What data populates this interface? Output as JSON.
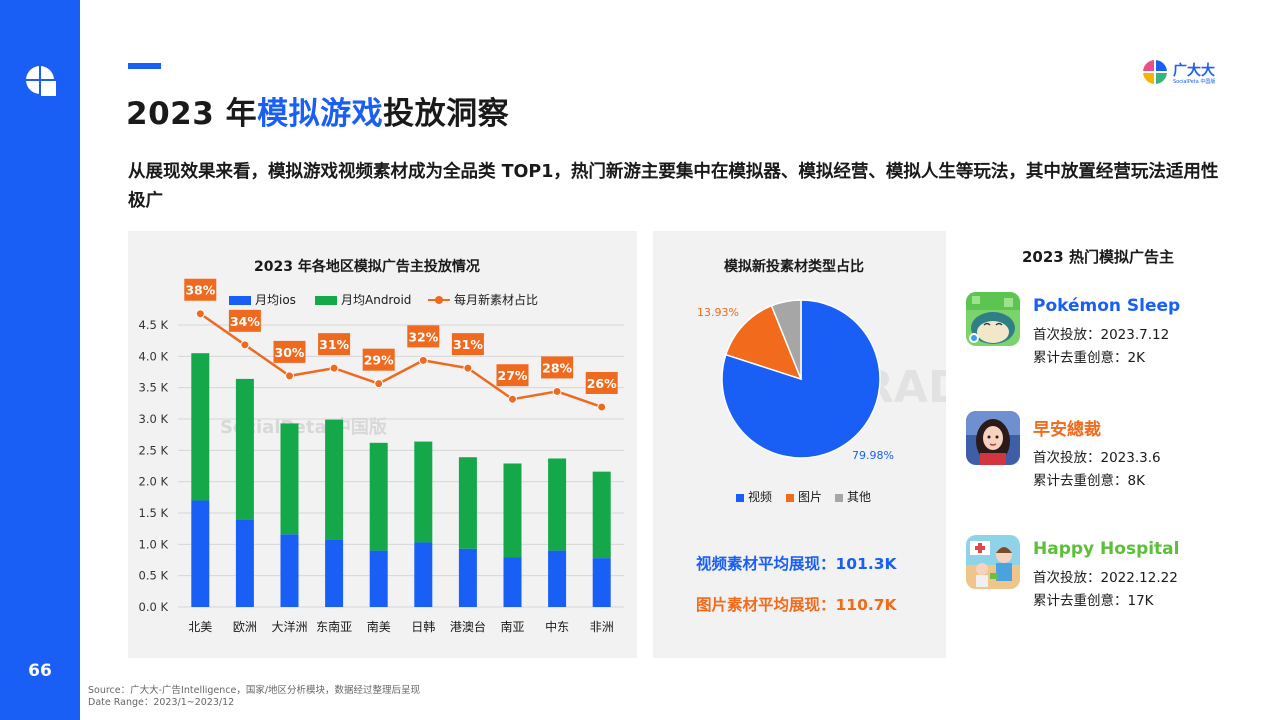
{
  "page_number": "66",
  "title": {
    "prefix": "2023 年",
    "highlight": "模拟游戏",
    "suffix": "投放洞察"
  },
  "brand": {
    "name": "广大大",
    "sub": "SocialPeta 中国版"
  },
  "description": "从展现效果来看，模拟游戏视频素材成为全品类 TOP1，热门新游主要集中在模拟器、模拟经营、模拟人生等玩法，其中放置经营玩法适用性极广",
  "watermarks": {
    "left": "SocialPeta 中国版",
    "right": "TRADPLUS"
  },
  "colors": {
    "ios": "#1a5ff5",
    "android": "#14a84a",
    "line": "#ef6a1f",
    "pie_video": "#1a5ff5",
    "pie_image": "#f26a1b",
    "pie_other": "#a6a6a6"
  },
  "chart_data": [
    {
      "type": "bar",
      "stacked": true,
      "title": "2023 年各地区模拟广告主投放情况",
      "categories": [
        "北美",
        "欧洲",
        "大洋洲",
        "东南亚",
        "南美",
        "日韩",
        "港澳台",
        "南亚",
        "中东",
        "非洲"
      ],
      "series": [
        {
          "name": "月均ios",
          "type": "bar",
          "values": [
            1700,
            1400,
            1160,
            1080,
            900,
            1030,
            930,
            790,
            900,
            780
          ]
        },
        {
          "name": "月均Android",
          "type": "bar",
          "values": [
            2350,
            2240,
            1770,
            1910,
            1720,
            1610,
            1460,
            1500,
            1470,
            1380
          ]
        },
        {
          "name": "每月新素材占比",
          "type": "line",
          "values": [
            38,
            34,
            30,
            31,
            29,
            32,
            31,
            27,
            28,
            26
          ],
          "labels": [
            "38%",
            "34%",
            "30%",
            "31%",
            "29%",
            "32%",
            "31%",
            "27%",
            "28%",
            "26%"
          ]
        }
      ],
      "y_ticks": [
        "0.0 K",
        "0.5 K",
        "1.0 K",
        "1.5 K",
        "2.0 K",
        "2.5 K",
        "3.0 K",
        "3.5 K",
        "4.0 K",
        "4.5 K"
      ],
      "ylim": [
        0,
        4500
      ],
      "grid": true,
      "legend_position": "top"
    },
    {
      "type": "pie",
      "title": "模拟新投素材类型占比",
      "categories": [
        "视频",
        "图片",
        "其他"
      ],
      "values": [
        79.98,
        13.93,
        6.09
      ],
      "labels": [
        "79.98%",
        "13.93%",
        ""
      ],
      "legend_position": "bottom"
    }
  ],
  "stats": [
    {
      "text": "视频素材平均展现：101.3K",
      "color": "#1a5ff5"
    },
    {
      "text": "图片素材平均展现：110.7K",
      "color": "#f26a1b"
    }
  ],
  "advertisers": {
    "heading": "2023 热门模拟广告主",
    "items": [
      {
        "name": "Pokémon Sleep",
        "name_color": "#1a5ff5",
        "first_launch": "首次投放：2023.7.12",
        "creatives": "累计去重创意：2K",
        "icon": "pokemon-sleep-icon"
      },
      {
        "name": "早安總裁",
        "name_color": "#f26a1b",
        "first_launch": "首次投放：2023.3.6",
        "creatives": "累计去重创意：8K",
        "icon": "good-morning-president-icon"
      },
      {
        "name": "Happy Hospital",
        "name_color": "#5bbf3a",
        "first_launch": "首次投放：2022.12.22",
        "creatives": "累计去重创意：17K",
        "icon": "happy-hospital-icon"
      }
    ]
  },
  "source": {
    "line1": "Source：广大大-广告Intelligence，国家/地区分析模块，数据经过整理后呈现",
    "line2": "Date Range：2023/1~2023/12"
  }
}
